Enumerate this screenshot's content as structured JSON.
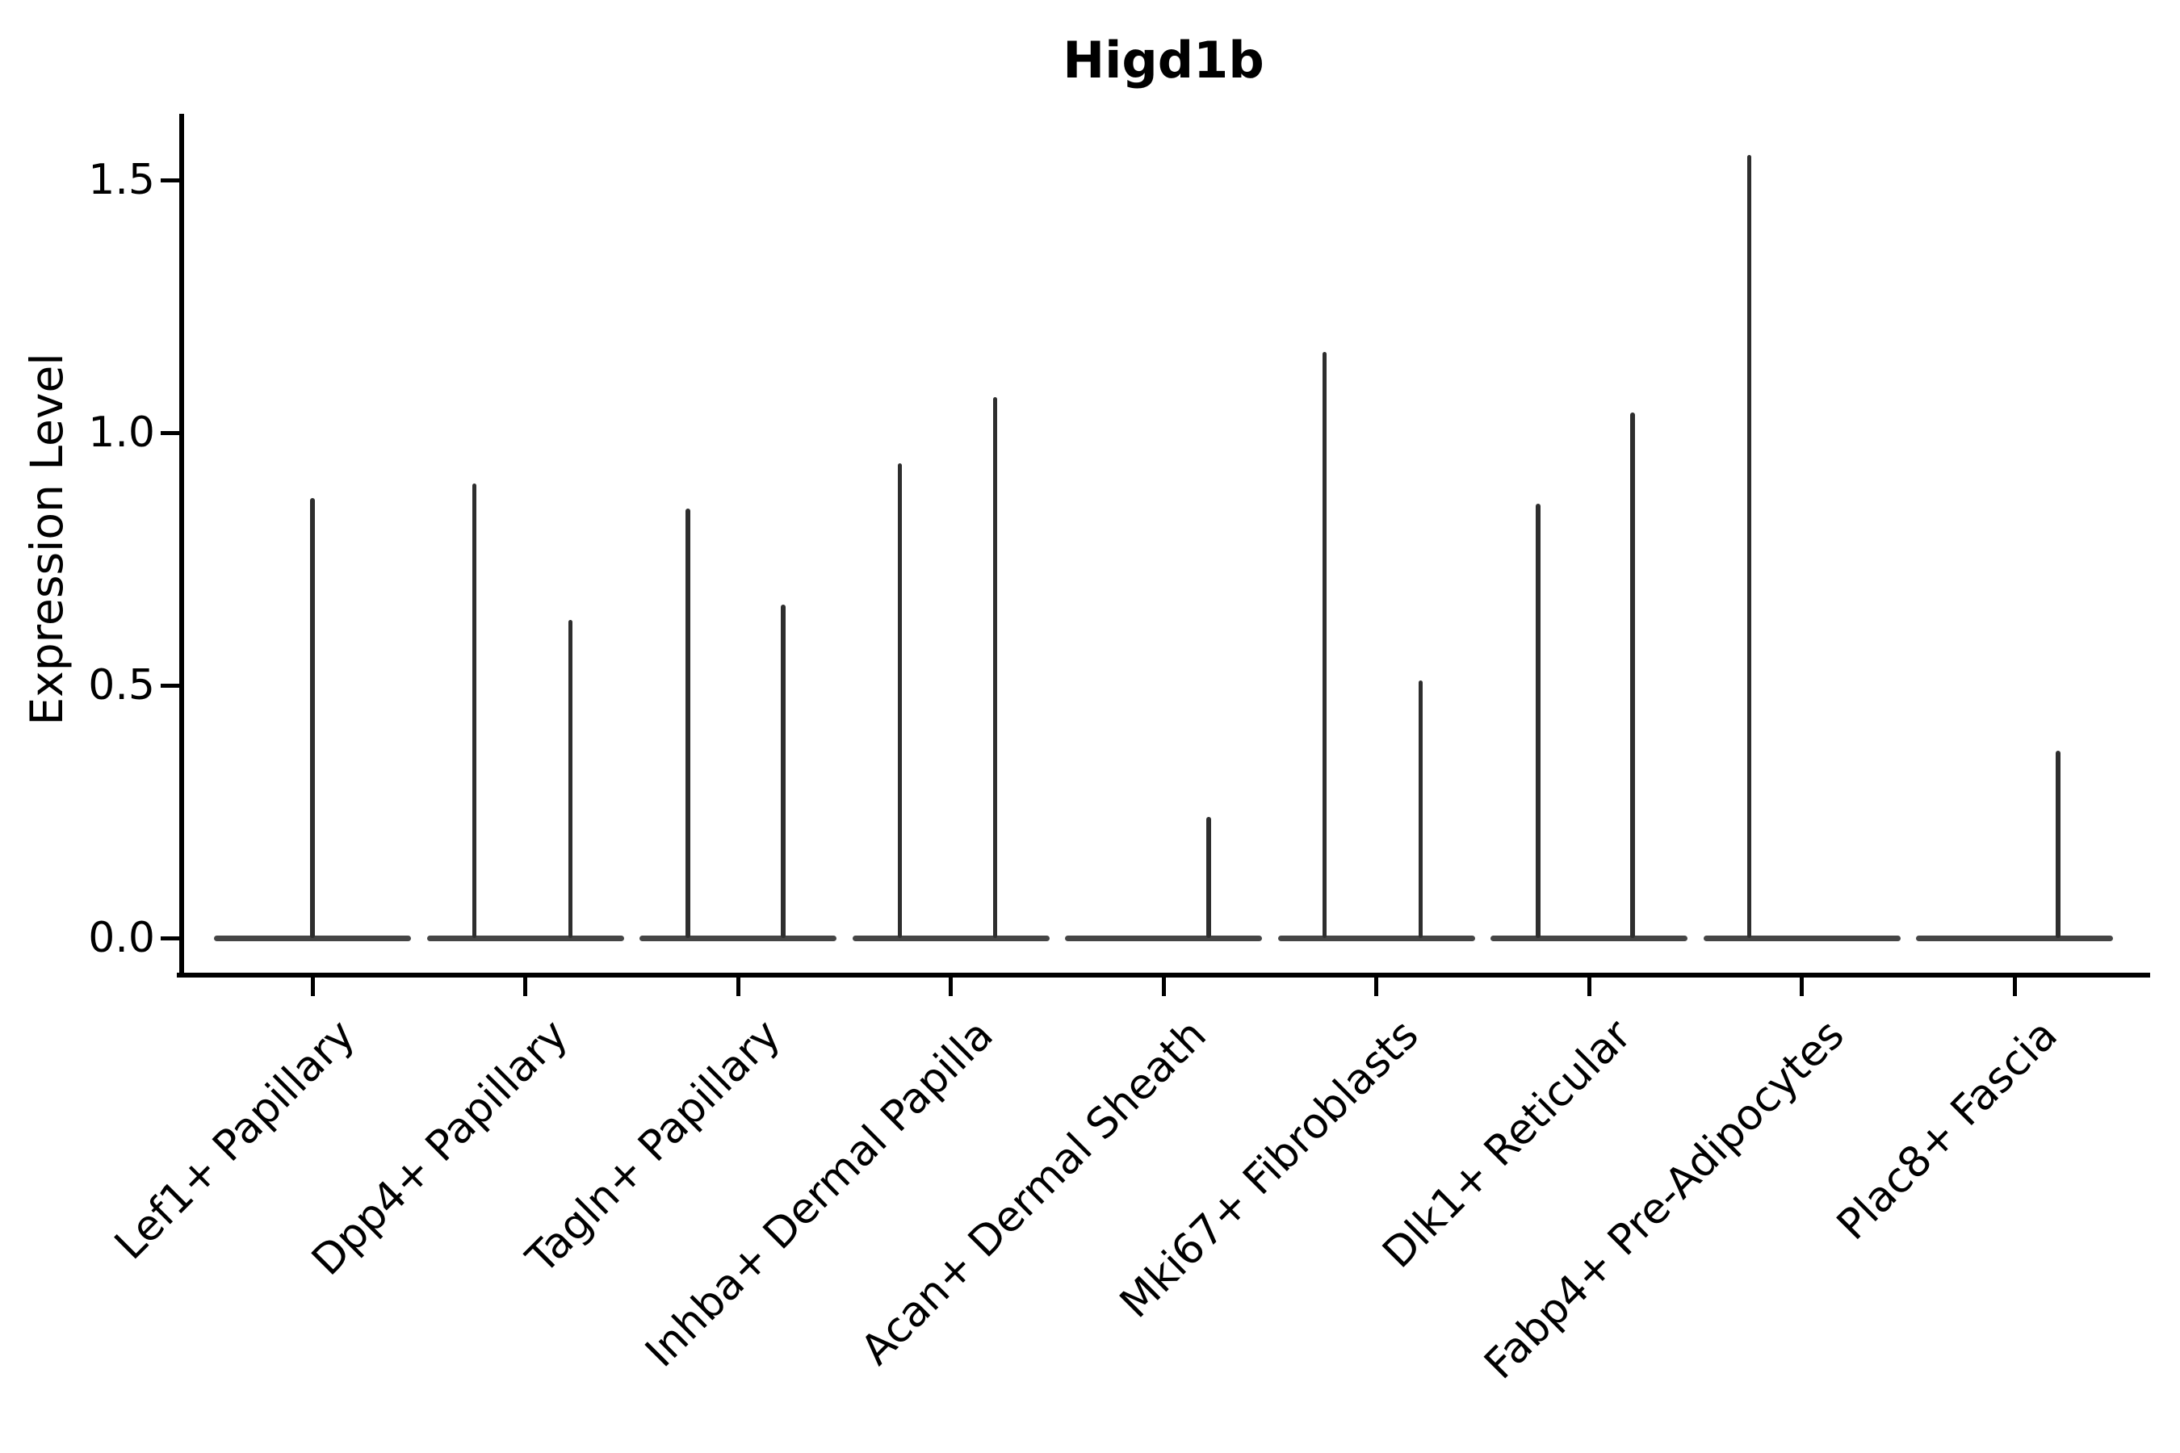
{
  "figure": {
    "title": "Higd1b"
  },
  "chart_data": {
    "type": "violin",
    "title": "Higd1b",
    "ylabel": "Expression Level",
    "xlabel": "",
    "ylim": [
      -0.07,
      1.63
    ],
    "yticks": [
      0.0,
      0.5,
      1.0,
      1.5
    ],
    "ytick_labels": [
      "0.0",
      "0.5",
      "1.0",
      "1.5"
    ],
    "grid": false,
    "legend": "none",
    "line_color": "#2e2e2e",
    "baseline_color": "#454545",
    "categories": [
      "Lef1+ Papillary",
      "Dpp4+ Papillary",
      "Tagln+ Papillary",
      "Inhba+ Dermal Papilla",
      "Acan+ Dermal Sheath",
      "Mki67+ Fibroblasts",
      "Dlk1+ Reticular",
      "Fabp4+ Pre-Adipocytes",
      "Plac8+ Fascia"
    ],
    "violins": [
      {
        "category": "Lef1+ Papillary",
        "base": 0,
        "spikes": [
          {
            "dx": 0,
            "max": 0.87
          }
        ]
      },
      {
        "category": "Dpp4+ Papillary",
        "base": 0,
        "spikes": [
          {
            "dx": -63,
            "max": 0.9
          },
          {
            "dx": 56,
            "max": 0.63
          }
        ]
      },
      {
        "category": "Tagln+ Papillary",
        "base": 0,
        "spikes": [
          {
            "dx": -62,
            "max": 0.85
          },
          {
            "dx": 56,
            "max": 0.66
          }
        ]
      },
      {
        "category": "Inhba+ Dermal Papilla",
        "base": 0,
        "spikes": [
          {
            "dx": -63,
            "max": 0.94
          },
          {
            "dx": 55,
            "max": 1.07
          }
        ]
      },
      {
        "category": "Acan+ Dermal Sheath",
        "base": 0,
        "spikes": [
          {
            "dx": 56,
            "max": 0.24
          }
        ]
      },
      {
        "category": "Mki67+ Fibroblasts",
        "base": 0,
        "spikes": [
          {
            "dx": -64,
            "max": 1.16
          },
          {
            "dx": 55,
            "max": 0.51
          }
        ]
      },
      {
        "category": "Dlk1+ Reticular",
        "base": 0,
        "spikes": [
          {
            "dx": -63,
            "max": 0.86
          },
          {
            "dx": 54,
            "max": 1.04
          }
        ]
      },
      {
        "category": "Fabp4+ Pre-Adipocytes",
        "base": 0,
        "spikes": [
          {
            "dx": -65,
            "max": 1.55
          }
        ]
      },
      {
        "category": "Plac8+ Fascia",
        "base": 0,
        "spikes": [
          {
            "dx": 54,
            "max": 0.37
          }
        ]
      }
    ]
  }
}
